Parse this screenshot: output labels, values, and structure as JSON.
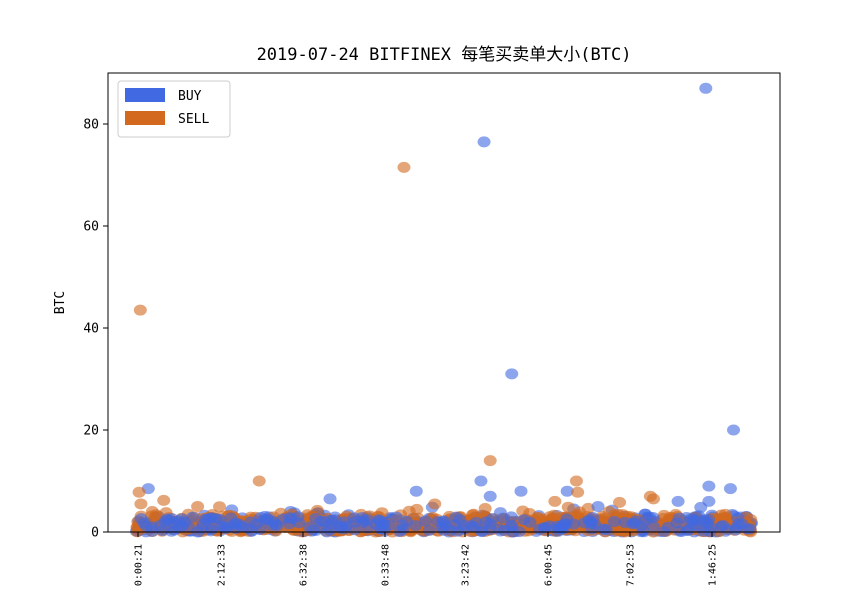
{
  "chart_data": {
    "type": "scatter",
    "title": "2019-07-24 BITFINEX 每笔买卖单大小(BTC)",
    "xlabel": "",
    "ylabel": "BTC",
    "ylim": [
      0,
      90
    ],
    "yticks": [
      0,
      20,
      40,
      60,
      80
    ],
    "x_tick_labels": [
      "0:00:21",
      "2:12:33",
      "6:32:38",
      "0:33:48",
      "3:23:42",
      "6:00:45",
      "7:02:53",
      "1:46:25"
    ],
    "legend": {
      "position": "top-left"
    },
    "grid": false,
    "x_domain": [
      0,
      100
    ],
    "colors": {
      "BUY": "#4169e1",
      "SELL": "#d2691e"
    },
    "series": [
      {
        "name": "BUY",
        "notable_points": [
          {
            "x": 2.0,
            "y": 8.5
          },
          {
            "x": 45.5,
            "y": 8.0
          },
          {
            "x": 56.5,
            "y": 76.5
          },
          {
            "x": 56.0,
            "y": 10.0
          },
          {
            "x": 57.5,
            "y": 7.0
          },
          {
            "x": 61.0,
            "y": 31.0
          },
          {
            "x": 62.5,
            "y": 8.0
          },
          {
            "x": 70.0,
            "y": 8.0
          },
          {
            "x": 88.0,
            "y": 6.0
          },
          {
            "x": 92.5,
            "y": 87.0
          },
          {
            "x": 93.0,
            "y": 9.0
          },
          {
            "x": 96.5,
            "y": 8.5
          },
          {
            "x": 97.0,
            "y": 20.0
          },
          {
            "x": 93.0,
            "y": 6.0
          },
          {
            "x": 31.5,
            "y": 6.5
          },
          {
            "x": 75.0,
            "y": 5.0
          }
        ],
        "bulk_range": [
          0.5,
          5
        ]
      },
      {
        "name": "SELL",
        "notable_points": [
          {
            "x": 0.7,
            "y": 43.5
          },
          {
            "x": 0.5,
            "y": 7.8
          },
          {
            "x": 0.8,
            "y": 5.5
          },
          {
            "x": 4.5,
            "y": 6.2
          },
          {
            "x": 20.0,
            "y": 10.0
          },
          {
            "x": 43.5,
            "y": 71.5
          },
          {
            "x": 48.5,
            "y": 5.5
          },
          {
            "x": 57.5,
            "y": 14.0
          },
          {
            "x": 71.5,
            "y": 10.0
          },
          {
            "x": 71.7,
            "y": 7.8
          },
          {
            "x": 68.0,
            "y": 6.0
          },
          {
            "x": 83.5,
            "y": 7.0
          },
          {
            "x": 84.0,
            "y": 6.5
          },
          {
            "x": 78.5,
            "y": 5.8
          },
          {
            "x": 10.0,
            "y": 5.0
          }
        ],
        "bulk_range": [
          0.5,
          5
        ]
      }
    ]
  }
}
